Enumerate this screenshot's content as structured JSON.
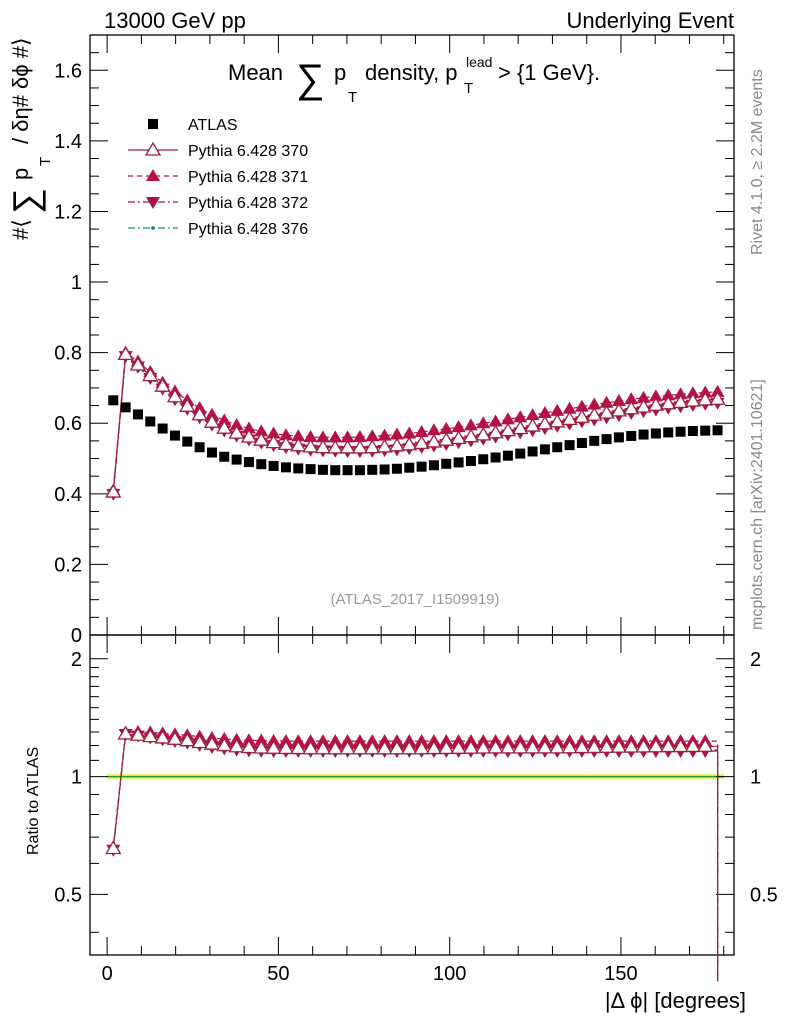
{
  "header": {
    "left": "13000 GeV pp",
    "right": "Underlying Event"
  },
  "side_labels": {
    "rivet": "Rivet 4.1.0, ≥ 2.2M events",
    "mcplots": "mcplots.cern.ch [arXiv:2401.10621]"
  },
  "chart_data": {
    "type": "scatter",
    "title": "Mean ∑ p_T density, p_T^lead > {1 GeV}.",
    "title_parts": {
      "pre": "Mean",
      "sum": "∑",
      "p": "p",
      "psub": "T",
      "mid": "density, p",
      "sub": "T",
      "sup": "lead",
      "post": "> {1 GeV}."
    },
    "watermark": "(ATLAS_2017_I1509919)",
    "xlabel": "|Δ ϕ| [degrees]",
    "ylabel_parts": {
      "pre": "#⟨",
      "sum": "∑",
      "p": "p",
      "sub": "T",
      "post": "/ δη# δϕ #⟩"
    },
    "ratio_ylabel": "Ratio to ATLAS",
    "xlim": [
      -5,
      183
    ],
    "ylim": [
      0,
      1.7
    ],
    "ratio_ylim": [
      0.35,
      2.3
    ],
    "x_ticks": [
      0,
      50,
      100,
      150
    ],
    "x_tick_labels": [
      "0",
      "50",
      "100",
      "150"
    ],
    "y_ticks": [
      0,
      0.2,
      0.4,
      0.6,
      0.8,
      1.0,
      1.2,
      1.4,
      1.6
    ],
    "y_tick_labels": [
      "0",
      "0.2",
      "0.4",
      "0.6",
      "0.8",
      "1",
      "1.2",
      "1.4",
      "1.6"
    ],
    "ratio_y_ticks": [
      0.5,
      1,
      2
    ],
    "ratio_y_tick_labels": [
      "0.5",
      "1",
      "2"
    ],
    "x": [
      1.8,
      5.4,
      9,
      12.6,
      16.2,
      19.8,
      23.4,
      27,
      30.6,
      34.2,
      37.8,
      41.4,
      45,
      48.6,
      52.2,
      55.8,
      59.4,
      63,
      66.6,
      70.2,
      73.8,
      77.4,
      81,
      84.6,
      88.2,
      91.8,
      95.4,
      99,
      102.6,
      106.2,
      109.8,
      113.4,
      117,
      120.6,
      124.2,
      127.8,
      131.4,
      135,
      138.6,
      142.2,
      145.8,
      149.4,
      153,
      156.6,
      160.2,
      163.8,
      167.4,
      171,
      174.6,
      178.2
    ],
    "series": [
      {
        "name": "ATLAS",
        "color": "#000000",
        "marker": "square",
        "values": [
          0.665,
          0.645,
          0.625,
          0.605,
          0.585,
          0.565,
          0.548,
          0.532,
          0.517,
          0.505,
          0.497,
          0.49,
          0.484,
          0.479,
          0.475,
          0.472,
          0.47,
          0.468,
          0.467,
          0.467,
          0.467,
          0.468,
          0.469,
          0.471,
          0.474,
          0.477,
          0.481,
          0.485,
          0.489,
          0.493,
          0.498,
          0.503,
          0.508,
          0.514,
          0.52,
          0.526,
          0.532,
          0.538,
          0.544,
          0.55,
          0.555,
          0.56,
          0.564,
          0.568,
          0.571,
          0.574,
          0.576,
          0.578,
          0.579,
          0.58
        ]
      },
      {
        "name": "Pythia 6.428 370",
        "color": "#a01e37",
        "marker": "triangle-up-open",
        "line": "solid",
        "values": [
          0.405,
          0.795,
          0.765,
          0.735,
          0.705,
          0.675,
          0.648,
          0.624,
          0.603,
          0.586,
          0.572,
          0.561,
          0.552,
          0.545,
          0.54,
          0.536,
          0.533,
          0.531,
          0.53,
          0.53,
          0.53,
          0.531,
          0.533,
          0.536,
          0.539,
          0.543,
          0.547,
          0.552,
          0.557,
          0.562,
          0.567,
          0.573,
          0.579,
          0.585,
          0.592,
          0.598,
          0.604,
          0.611,
          0.617,
          0.623,
          0.629,
          0.635,
          0.641,
          0.646,
          0.651,
          0.655,
          0.659,
          0.663,
          0.666,
          0.668
        ]
      },
      {
        "name": "Pythia 6.428 371",
        "color": "#b5124a",
        "marker": "triangle-up",
        "line": "dashed",
        "values": [
          0.41,
          0.8,
          0.775,
          0.745,
          0.715,
          0.69,
          0.665,
          0.643,
          0.624,
          0.608,
          0.595,
          0.585,
          0.577,
          0.571,
          0.566,
          0.563,
          0.561,
          0.56,
          0.56,
          0.56,
          0.561,
          0.563,
          0.565,
          0.568,
          0.571,
          0.575,
          0.58,
          0.584,
          0.589,
          0.594,
          0.6,
          0.605,
          0.611,
          0.617,
          0.623,
          0.629,
          0.635,
          0.641,
          0.647,
          0.653,
          0.658,
          0.663,
          0.668,
          0.672,
          0.676,
          0.679,
          0.682,
          0.685,
          0.687,
          0.689
        ]
      },
      {
        "name": "Pythia 6.428 372",
        "color": "#a8124f",
        "marker": "triangle-down",
        "line": "dashdot",
        "values": [
          0.4,
          0.79,
          0.76,
          0.728,
          0.698,
          0.668,
          0.641,
          0.617,
          0.596,
          0.579,
          0.565,
          0.554,
          0.545,
          0.538,
          0.532,
          0.528,
          0.525,
          0.523,
          0.522,
          0.521,
          0.521,
          0.522,
          0.524,
          0.526,
          0.529,
          0.533,
          0.537,
          0.541,
          0.546,
          0.551,
          0.556,
          0.562,
          0.568,
          0.574,
          0.58,
          0.586,
          0.593,
          0.599,
          0.605,
          0.611,
          0.617,
          0.623,
          0.629,
          0.634,
          0.639,
          0.644,
          0.648,
          0.652,
          0.655,
          0.658
        ]
      },
      {
        "name": "Pythia 6.428 376",
        "color": "#1a8a82",
        "marker": "dot",
        "line": "dashdot",
        "values": [
          0.405,
          0.792,
          0.762,
          0.731,
          0.701,
          0.671,
          0.644,
          0.62,
          0.599,
          0.582,
          0.568,
          0.557,
          0.548,
          0.541,
          0.536,
          0.532,
          0.529,
          0.527,
          0.526,
          0.526,
          0.526,
          0.527,
          0.529,
          0.531,
          0.534,
          0.538,
          0.542,
          0.547,
          0.552,
          0.557,
          0.562,
          0.568,
          0.574,
          0.58,
          0.586,
          0.592,
          0.599,
          0.605,
          0.611,
          0.617,
          0.623,
          0.629,
          0.634,
          0.64,
          0.645,
          0.649,
          0.653,
          0.657,
          0.66,
          0.663
        ]
      }
    ],
    "ratio_series": [
      {
        "name": "Pythia 6.428 370",
        "values": [
          0.655,
          1.285,
          1.275,
          1.265,
          1.255,
          1.245,
          1.235,
          1.222,
          1.21,
          1.2,
          1.192,
          1.186,
          1.183,
          1.181,
          1.18,
          1.179,
          1.178,
          1.178,
          1.178,
          1.178,
          1.178,
          1.178,
          1.178,
          1.178,
          1.178,
          1.178,
          1.179,
          1.18,
          1.181,
          1.182,
          1.183,
          1.184,
          1.184,
          1.184,
          1.184,
          1.184,
          1.184,
          1.185,
          1.186,
          1.187,
          1.188,
          1.189,
          1.19,
          1.191,
          1.192,
          1.193,
          1.193,
          1.194,
          1.195,
          1.195
        ]
      },
      {
        "name": "Pythia 6.428 371",
        "values": [
          0.66,
          1.295,
          1.3,
          1.297,
          1.29,
          1.283,
          1.275,
          1.265,
          1.255,
          1.248,
          1.242,
          1.238,
          1.236,
          1.234,
          1.233,
          1.232,
          1.232,
          1.232,
          1.232,
          1.232,
          1.232,
          1.232,
          1.232,
          1.232,
          1.232,
          1.232,
          1.232,
          1.232,
          1.232,
          1.232,
          1.232,
          1.232,
          1.232,
          1.232,
          1.232,
          1.232,
          1.232,
          1.232,
          1.232,
          1.232,
          1.232,
          1.232,
          1.232,
          1.232,
          1.232,
          1.232,
          1.232,
          1.232,
          1.232,
          1.232
        ]
      },
      {
        "name": "Pythia 6.428 372",
        "values": [
          0.65,
          1.285,
          1.272,
          1.258,
          1.245,
          1.232,
          1.22,
          1.205,
          1.19,
          1.18,
          1.172,
          1.167,
          1.164,
          1.162,
          1.162,
          1.162,
          1.162,
          1.162,
          1.162,
          1.162,
          1.162,
          1.162,
          1.162,
          1.162,
          1.162,
          1.162,
          1.162,
          1.162,
          1.162,
          1.162,
          1.162,
          1.162,
          1.162,
          1.162,
          1.162,
          1.162,
          1.162,
          1.162,
          1.162,
          1.162,
          1.162,
          1.162,
          1.162,
          1.162,
          1.162,
          1.162,
          1.162,
          1.162,
          1.162,
          1.162
        ]
      },
      {
        "name": "Pythia 6.428 376",
        "values": [
          0.652,
          1.28,
          1.27,
          1.26,
          1.25,
          1.24,
          1.228,
          1.215,
          1.203,
          1.192,
          1.184,
          1.178,
          1.174,
          1.172,
          1.171,
          1.17,
          1.17,
          1.17,
          1.17,
          1.17,
          1.17,
          1.17,
          1.17,
          1.17,
          1.17,
          1.17,
          1.17,
          1.17,
          1.17,
          1.17,
          1.17,
          1.17,
          1.17,
          1.17,
          1.17,
          1.17,
          1.17,
          1.17,
          1.17,
          1.17,
          1.17,
          1.17,
          1.17,
          1.17,
          1.17,
          1.17,
          1.17,
          1.17,
          1.17,
          1.17
        ]
      }
    ],
    "ratio_last_value": 0.3
  }
}
